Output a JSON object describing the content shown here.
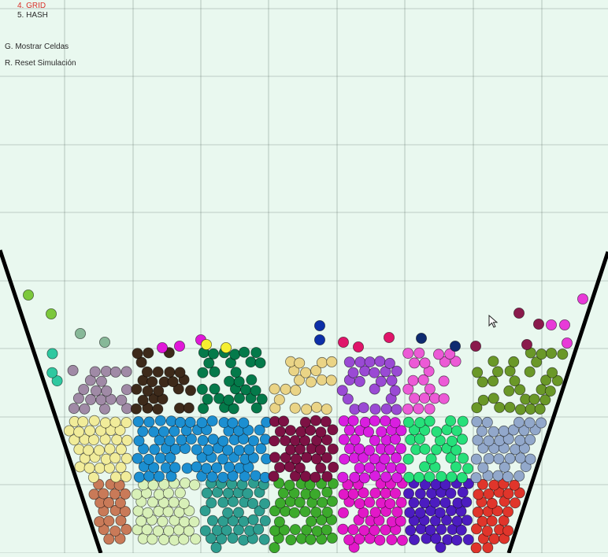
{
  "menu": {
    "item_grid": "4. GRID",
    "item_hash": "5. HASH",
    "show_cells": "G. Mostrar Celdas",
    "reset": "R. Reset Simulación"
  },
  "colors": {
    "background": "#e9f8ef",
    "active_menu": "#d9322b",
    "container_wall": "#000000",
    "cell_grid": "#4a5a52"
  },
  "particle_colors": [
    "#f1ec9a",
    "#1c8fd1",
    "#7d1144",
    "#d91ee0",
    "#26e07a",
    "#92a8cb",
    "#c97a58",
    "#d8f0b8",
    "#2e9e90",
    "#3caa2c",
    "#e218c8",
    "#4c1cc0",
    "#e0352b",
    "#a08aa6",
    "#3d2a1a",
    "#047a4a",
    "#ead486",
    "#9a4ad4",
    "#ec5ad6",
    "#6a9828",
    "#2ec8a0"
  ]
}
